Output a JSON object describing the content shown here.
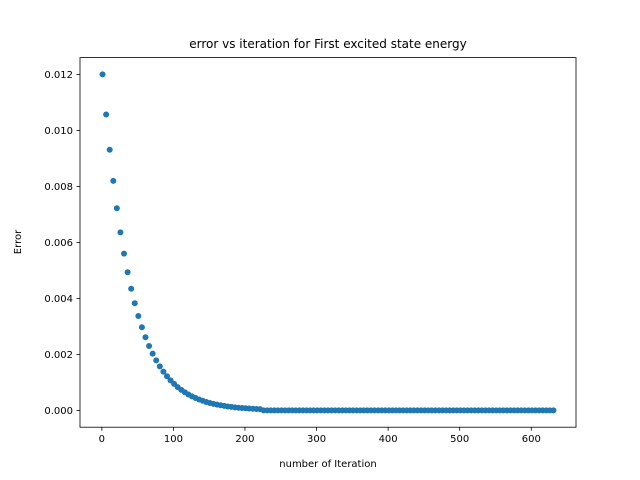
{
  "chart_data": {
    "type": "scatter",
    "title": "error vs iteration for First excited state energy",
    "x_label": "number of Iteration",
    "y_label": "Error",
    "color": "#1f77b4",
    "x": [
      1,
      6,
      11,
      16,
      21,
      26,
      31,
      36,
      41,
      46,
      51,
      56,
      61,
      66,
      71,
      76,
      81,
      86,
      91,
      96,
      101,
      106,
      111,
      116,
      121,
      126,
      131,
      136,
      141,
      146,
      151,
      156,
      161,
      166,
      171,
      176,
      181,
      186,
      191,
      196,
      201,
      206,
      211,
      216,
      221,
      226,
      231,
      236,
      241,
      246,
      251,
      256,
      261,
      266,
      271,
      276,
      281,
      286,
      291,
      296,
      301,
      306,
      311,
      316,
      321,
      326,
      331,
      336,
      341,
      346,
      351,
      356,
      361,
      366,
      371,
      376,
      381,
      386,
      391,
      396,
      401,
      406,
      411,
      416,
      421,
      426,
      431,
      436,
      441,
      446,
      451,
      456,
      461,
      466,
      471,
      476,
      481,
      486,
      491,
      496,
      501,
      506,
      511,
      516,
      521,
      526,
      531,
      536,
      541,
      546,
      551,
      556,
      561,
      566,
      571,
      576,
      581,
      586,
      591,
      596,
      601,
      606,
      611,
      616,
      621,
      626,
      631
    ],
    "values": [
      0.012,
      0.010569,
      0.009308,
      0.008198,
      0.00722,
      0.006359,
      0.005601,
      0.004933,
      0.004344,
      0.003826,
      0.00337,
      0.002968,
      0.002614,
      0.002302,
      0.002028,
      0.001786,
      0.001573,
      0.001385,
      0.00122,
      0.001074,
      0.000946,
      0.000833,
      0.000734,
      0.000647,
      0.000569,
      0.000501,
      0.000442,
      0.000389,
      0.000343,
      0.000302,
      0.000266,
      0.000234,
      0.000206,
      0.000182,
      0.00016,
      0.000141,
      0.000124,
      0.000109,
      9.6e-05,
      8.5e-05,
      7.5e-05,
      6.6e-05,
      5.8e-05,
      5.1e-05,
      4.5e-05,
      0,
      0,
      0,
      0,
      0,
      0,
      0,
      0,
      0,
      0,
      0,
      0,
      0,
      0,
      0,
      0,
      0,
      0,
      0,
      0,
      0,
      0,
      0,
      0,
      0,
      0,
      0,
      0,
      0,
      0,
      0,
      0,
      0,
      0,
      0,
      0,
      0,
      0,
      0,
      0,
      0,
      0,
      0,
      0,
      0,
      0,
      0,
      0,
      0,
      0,
      0,
      0,
      0,
      0,
      0,
      0,
      0,
      0,
      0,
      0,
      0,
      0,
      0,
      0,
      0,
      0,
      0,
      0,
      0,
      0,
      0,
      0,
      0,
      0,
      0,
      0,
      0,
      0,
      0,
      0,
      0,
      0
    ],
    "xlim": [
      -30.5,
      662.5
    ],
    "ylim": [
      -0.0006,
      0.0126
    ],
    "xticks": [
      0,
      100,
      200,
      300,
      400,
      500,
      600
    ],
    "yticks": [
      {
        "value": 0,
        "label": "0.000"
      },
      {
        "value": 0.002,
        "label": "0.002"
      },
      {
        "value": 0.004,
        "label": "0.004"
      },
      {
        "value": 0.006,
        "label": "0.006"
      },
      {
        "value": 0.008,
        "label": "0.008"
      },
      {
        "value": 0.01,
        "label": "0.010"
      },
      {
        "value": 0.012,
        "label": "0.012"
      }
    ]
  }
}
